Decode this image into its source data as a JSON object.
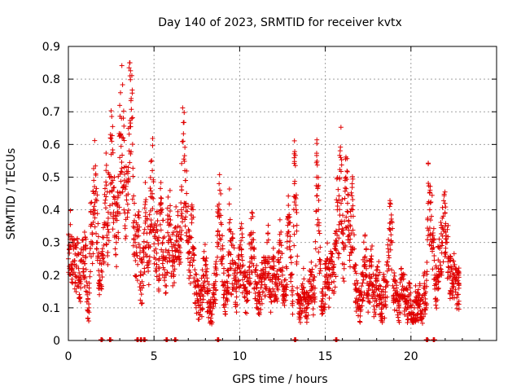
{
  "chart_data": {
    "type": "scatter",
    "title": "Day 140 of 2023, SRMTID for receiver kvtx",
    "xlabel": "GPS time / hours",
    "ylabel": "SRMTID / TECUs",
    "xlim": [
      0,
      25
    ],
    "ylim": [
      0,
      0.9
    ],
    "xticks": [
      "0",
      "5",
      "10",
      "15",
      "20"
    ],
    "yticks": [
      "0",
      "0.1",
      "0.2",
      "0.3",
      "0.4",
      "0.5",
      "0.6",
      "0.7",
      "0.8",
      "0.9"
    ],
    "grid": true,
    "marker": "plus",
    "color": "#e00000",
    "series": [
      {
        "name": "SRMTID",
        "points": [
          [
            0.0,
            0.25
          ],
          [
            0.1,
            0.31
          ],
          [
            0.2,
            0.23
          ],
          [
            0.3,
            0.28
          ],
          [
            0.4,
            0.2
          ],
          [
            0.5,
            0.26
          ],
          [
            0.6,
            0.22
          ],
          [
            0.7,
            0.18
          ],
          [
            0.8,
            0.24
          ],
          [
            0.9,
            0.21
          ],
          [
            1.0,
            0.28
          ],
          [
            1.1,
            0.14
          ],
          [
            1.2,
            0.1
          ],
          [
            1.3,
            0.35
          ],
          [
            1.4,
            0.3
          ],
          [
            1.5,
            0.45
          ],
          [
            1.6,
            0.51
          ],
          [
            1.7,
            0.3
          ],
          [
            1.8,
            0.2
          ],
          [
            1.9,
            0.16
          ],
          [
            2.0,
            0.26
          ],
          [
            2.1,
            0.36
          ],
          [
            2.2,
            0.44
          ],
          [
            2.3,
            0.34
          ],
          [
            2.4,
            0.5
          ],
          [
            2.5,
            0.57
          ],
          [
            2.6,
            0.49
          ],
          [
            2.7,
            0.42
          ],
          [
            2.8,
            0.3
          ],
          [
            2.9,
            0.39
          ],
          [
            3.0,
            0.56
          ],
          [
            3.1,
            0.68
          ],
          [
            3.2,
            0.62
          ],
          [
            3.3,
            0.39
          ],
          [
            3.4,
            0.43
          ],
          [
            3.5,
            0.53
          ],
          [
            3.6,
            0.81
          ],
          [
            3.7,
            0.68
          ],
          [
            3.8,
            0.36
          ],
          [
            3.9,
            0.3
          ],
          [
            4.0,
            0.26
          ],
          [
            4.1,
            0.32
          ],
          [
            4.2,
            0.2
          ],
          [
            4.3,
            0.18
          ],
          [
            4.4,
            0.27
          ],
          [
            4.5,
            0.38
          ],
          [
            4.6,
            0.3
          ],
          [
            4.7,
            0.24
          ],
          [
            4.8,
            0.44
          ],
          [
            4.9,
            0.52
          ],
          [
            5.0,
            0.35
          ],
          [
            5.1,
            0.28
          ],
          [
            5.2,
            0.31
          ],
          [
            5.3,
            0.22
          ],
          [
            5.4,
            0.4
          ],
          [
            5.5,
            0.3
          ],
          [
            5.6,
            0.25
          ],
          [
            5.7,
            0.2
          ],
          [
            5.8,
            0.33
          ],
          [
            5.9,
            0.38
          ],
          [
            6.0,
            0.3
          ],
          [
            6.1,
            0.26
          ],
          [
            6.2,
            0.24
          ],
          [
            6.3,
            0.32
          ],
          [
            6.4,
            0.35
          ],
          [
            6.5,
            0.25
          ],
          [
            6.6,
            0.4
          ],
          [
            6.7,
            0.61
          ],
          [
            6.8,
            0.52
          ],
          [
            6.9,
            0.45
          ],
          [
            7.0,
            0.3
          ],
          [
            7.1,
            0.24
          ],
          [
            7.2,
            0.36
          ],
          [
            7.3,
            0.28
          ],
          [
            7.4,
            0.18
          ],
          [
            7.5,
            0.14
          ],
          [
            7.6,
            0.12
          ],
          [
            7.7,
            0.1
          ],
          [
            7.8,
            0.14
          ],
          [
            7.9,
            0.2
          ],
          [
            8.0,
            0.23
          ],
          [
            8.1,
            0.16
          ],
          [
            8.2,
            0.12
          ],
          [
            8.3,
            0.09
          ],
          [
            8.4,
            0.08
          ],
          [
            8.5,
            0.14
          ],
          [
            8.6,
            0.2
          ],
          [
            8.7,
            0.3
          ],
          [
            8.8,
            0.48
          ],
          [
            8.9,
            0.36
          ],
          [
            9.0,
            0.25
          ],
          [
            9.1,
            0.14
          ],
          [
            9.2,
            0.11
          ],
          [
            9.3,
            0.16
          ],
          [
            9.4,
            0.36
          ],
          [
            9.5,
            0.22
          ],
          [
            9.6,
            0.24
          ],
          [
            9.7,
            0.2
          ],
          [
            9.8,
            0.15
          ],
          [
            9.9,
            0.18
          ],
          [
            10.0,
            0.22
          ],
          [
            10.1,
            0.28
          ],
          [
            10.2,
            0.2
          ],
          [
            10.3,
            0.16
          ],
          [
            10.4,
            0.12
          ],
          [
            10.5,
            0.18
          ],
          [
            10.6,
            0.24
          ],
          [
            10.7,
            0.3
          ],
          [
            10.8,
            0.28
          ],
          [
            10.9,
            0.18
          ],
          [
            11.0,
            0.16
          ],
          [
            11.1,
            0.12
          ],
          [
            11.2,
            0.14
          ],
          [
            11.3,
            0.18
          ],
          [
            11.4,
            0.2
          ],
          [
            11.5,
            0.16
          ],
          [
            11.6,
            0.3
          ],
          [
            11.7,
            0.24
          ],
          [
            11.8,
            0.15
          ],
          [
            11.9,
            0.18
          ],
          [
            12.0,
            0.22
          ],
          [
            12.1,
            0.14
          ],
          [
            12.2,
            0.16
          ],
          [
            12.3,
            0.24
          ],
          [
            12.4,
            0.3
          ],
          [
            12.5,
            0.2
          ],
          [
            12.6,
            0.15
          ],
          [
            12.7,
            0.14
          ],
          [
            12.8,
            0.32
          ],
          [
            12.9,
            0.36
          ],
          [
            13.0,
            0.2
          ],
          [
            13.1,
            0.12
          ],
          [
            13.2,
            0.48
          ],
          [
            13.3,
            0.4
          ],
          [
            13.4,
            0.14
          ],
          [
            13.5,
            0.08
          ],
          [
            13.6,
            0.12
          ],
          [
            13.7,
            0.16
          ],
          [
            13.8,
            0.14
          ],
          [
            13.9,
            0.1
          ],
          [
            14.0,
            0.12
          ],
          [
            14.1,
            0.18
          ],
          [
            14.2,
            0.2
          ],
          [
            14.3,
            0.14
          ],
          [
            14.4,
            0.16
          ],
          [
            14.5,
            0.5
          ],
          [
            14.6,
            0.4
          ],
          [
            14.7,
            0.22
          ],
          [
            14.8,
            0.12
          ],
          [
            14.9,
            0.1
          ],
          [
            15.0,
            0.18
          ],
          [
            15.1,
            0.25
          ],
          [
            15.2,
            0.16
          ],
          [
            15.3,
            0.2
          ],
          [
            15.4,
            0.24
          ],
          [
            15.5,
            0.18
          ],
          [
            15.6,
            0.28
          ],
          [
            15.7,
            0.4
          ],
          [
            15.8,
            0.34
          ],
          [
            15.9,
            0.56
          ],
          [
            16.0,
            0.3
          ],
          [
            16.1,
            0.22
          ],
          [
            16.2,
            0.5
          ],
          [
            16.3,
            0.42
          ],
          [
            16.4,
            0.3
          ],
          [
            16.5,
            0.38
          ],
          [
            16.6,
            0.4
          ],
          [
            16.7,
            0.22
          ],
          [
            16.8,
            0.16
          ],
          [
            16.9,
            0.12
          ],
          [
            17.0,
            0.1
          ],
          [
            17.1,
            0.14
          ],
          [
            17.2,
            0.2
          ],
          [
            17.3,
            0.24
          ],
          [
            17.4,
            0.22
          ],
          [
            17.5,
            0.12
          ],
          [
            17.6,
            0.18
          ],
          [
            17.7,
            0.24
          ],
          [
            17.8,
            0.14
          ],
          [
            17.9,
            0.12
          ],
          [
            18.0,
            0.16
          ],
          [
            18.1,
            0.2
          ],
          [
            18.2,
            0.14
          ],
          [
            18.3,
            0.1
          ],
          [
            18.4,
            0.14
          ],
          [
            18.5,
            0.12
          ],
          [
            18.6,
            0.18
          ],
          [
            18.7,
            0.26
          ],
          [
            18.8,
            0.36
          ],
          [
            18.9,
            0.3
          ],
          [
            19.0,
            0.16
          ],
          [
            19.1,
            0.12
          ],
          [
            19.2,
            0.14
          ],
          [
            19.3,
            0.1
          ],
          [
            19.4,
            0.14
          ],
          [
            19.5,
            0.2
          ],
          [
            19.6,
            0.16
          ],
          [
            19.7,
            0.12
          ],
          [
            19.8,
            0.1
          ],
          [
            19.9,
            0.14
          ],
          [
            20.0,
            0.08
          ],
          [
            20.1,
            0.06
          ],
          [
            20.2,
            0.1
          ],
          [
            20.3,
            0.12
          ],
          [
            20.4,
            0.1
          ],
          [
            20.5,
            0.14
          ],
          [
            20.6,
            0.08
          ],
          [
            20.7,
            0.12
          ],
          [
            20.8,
            0.16
          ],
          [
            20.9,
            0.1
          ],
          [
            21.0,
            0.42
          ],
          [
            21.1,
            0.4
          ],
          [
            21.2,
            0.38
          ],
          [
            21.3,
            0.3
          ],
          [
            21.4,
            0.2
          ],
          [
            21.5,
            0.16
          ],
          [
            21.6,
            0.22
          ],
          [
            21.7,
            0.24
          ],
          [
            21.8,
            0.3
          ],
          [
            21.9,
            0.34
          ],
          [
            22.0,
            0.35
          ],
          [
            22.1,
            0.3
          ],
          [
            22.2,
            0.25
          ],
          [
            22.3,
            0.2
          ],
          [
            22.4,
            0.16
          ],
          [
            22.5,
            0.2
          ],
          [
            22.6,
            0.18
          ],
          [
            22.7,
            0.14
          ],
          [
            22.8,
            0.16
          ]
        ],
        "zero_markers": [
          1.9,
          2.4,
          4.0,
          4.2,
          4.4,
          5.7,
          6.2,
          8.7,
          13.2,
          15.6,
          20.9,
          21.3
        ]
      }
    ]
  }
}
